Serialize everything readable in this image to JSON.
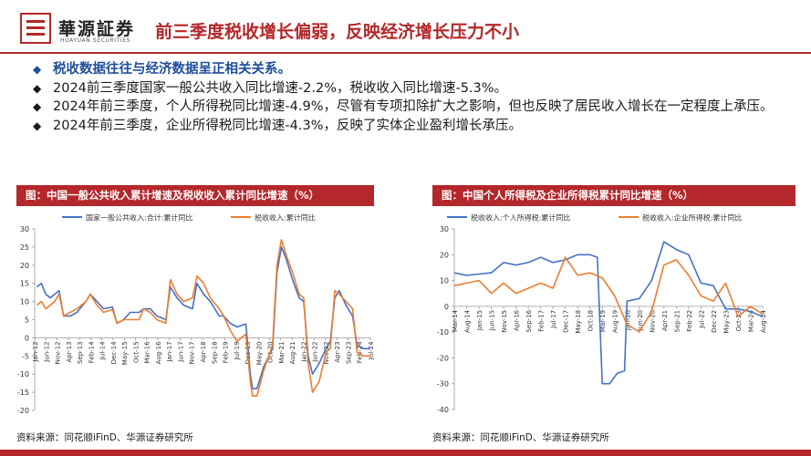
{
  "header": {
    "brand_name": "華源証券",
    "brand_sub": "HUAYUAN SECURITIES",
    "title": "前三季度税收增长偏弱，反映经济增长压力不小"
  },
  "bullets": [
    "税收数据往往与经济数据呈正相关关系。",
    "2024前三季度国家一般公共收入同比增速-2.2%，税收收入同比增速-5.3%。",
    "2024年前三季度，个人所得税同比增速-4.9%，尽管有专项扣除扩大之影响，但也反映了居民收入增长在一定程度上承压。",
    "2024年前三季度，企业所得税同比增速-4.3%，反映了实体企业盈利增长承压。"
  ],
  "bullet_marker": "◆",
  "colors": {
    "brand_red": "#b4272a",
    "series_blue": "#4472c4",
    "series_orange": "#ed7d31"
  },
  "source_left": "资料来源：同花顺iFinD、华源证券研究所",
  "source_right": "资料来源：同花顺iFinD、华源证券研究所",
  "chart_data": [
    {
      "type": "line",
      "title": "图：中国一般公共收入累计增速及税收收入累计同比增速（%）",
      "ylim": [
        -20,
        30
      ],
      "yticks": [
        -20,
        -15,
        -10,
        -5,
        0,
        5,
        10,
        15,
        20,
        25,
        30
      ],
      "x_start": "2012-01",
      "x_end": "2024-08",
      "xtick_labels": [
        "Jan-12",
        "Jun-12",
        "Nov-12",
        "Apr-13",
        "Sep-13",
        "Feb-14",
        "Jul-14",
        "Dec-14",
        "May-15",
        "Oct-15",
        "Mar-16",
        "Aug-16",
        "Jan-17",
        "Jun-17",
        "Nov-17",
        "Apr-18",
        "Sep-18",
        "Feb-19",
        "Jul-19",
        "Dec-19",
        "May-20",
        "Oct-20",
        "Mar-21",
        "Aug-21",
        "Jan-22",
        "Jun-22",
        "Nov-22",
        "Apr-23",
        "Sep-23",
        "Feb-24",
        "Jul-24"
      ],
      "grid": false,
      "legend_position": "top",
      "series": [
        {
          "name": "国家一般公共收入:合计:累计同比",
          "color": "#4472c4",
          "points": [
            [
              "2012-02",
              14
            ],
            [
              "2012-04",
              15
            ],
            [
              "2012-06",
              12
            ],
            [
              "2012-08",
              11
            ],
            [
              "2012-10",
              12
            ],
            [
              "2012-12",
              13
            ],
            [
              "2013-02",
              6
            ],
            [
              "2013-05",
              6
            ],
            [
              "2013-08",
              7
            ],
            [
              "2013-12",
              10
            ],
            [
              "2014-02",
              12
            ],
            [
              "2014-05",
              10
            ],
            [
              "2014-08",
              8
            ],
            [
              "2014-12",
              8.5
            ],
            [
              "2015-02",
              4
            ],
            [
              "2015-05",
              5
            ],
            [
              "2015-08",
              7
            ],
            [
              "2015-12",
              7
            ],
            [
              "2016-02",
              8
            ],
            [
              "2016-05",
              8
            ],
            [
              "2016-08",
              6
            ],
            [
              "2016-12",
              5
            ],
            [
              "2017-02",
              14
            ],
            [
              "2017-05",
              11
            ],
            [
              "2017-08",
              9
            ],
            [
              "2017-12",
              8
            ],
            [
              "2018-02",
              15
            ],
            [
              "2018-05",
              12
            ],
            [
              "2018-08",
              10
            ],
            [
              "2018-12",
              6
            ],
            [
              "2019-02",
              6
            ],
            [
              "2019-05",
              4
            ],
            [
              "2019-08",
              3
            ],
            [
              "2019-12",
              3.8
            ],
            [
              "2020-02",
              -10
            ],
            [
              "2020-03",
              -14
            ],
            [
              "2020-05",
              -14
            ],
            [
              "2020-08",
              -8
            ],
            [
              "2020-12",
              -3
            ],
            [
              "2021-02",
              18
            ],
            [
              "2021-04",
              25
            ],
            [
              "2021-06",
              22
            ],
            [
              "2021-09",
              16
            ],
            [
              "2021-12",
              11
            ],
            [
              "2022-02",
              10
            ],
            [
              "2022-04",
              -5
            ],
            [
              "2022-06",
              -10
            ],
            [
              "2022-09",
              -7
            ],
            [
              "2022-12",
              -3
            ],
            [
              "2023-02",
              -1
            ],
            [
              "2023-04",
              11
            ],
            [
              "2023-06",
              13
            ],
            [
              "2023-09",
              9
            ],
            [
              "2023-12",
              6
            ],
            [
              "2024-02",
              -2
            ],
            [
              "2024-05",
              -3
            ],
            [
              "2024-08",
              -3
            ]
          ]
        },
        {
          "name": "税收收入:累计同比",
          "color": "#ed7d31",
          "points": [
            [
              "2012-02",
              9
            ],
            [
              "2012-04",
              10
            ],
            [
              "2012-06",
              8
            ],
            [
              "2012-08",
              9
            ],
            [
              "2012-10",
              10
            ],
            [
              "2012-12",
              12
            ],
            [
              "2013-02",
              6
            ],
            [
              "2013-05",
              7
            ],
            [
              "2013-08",
              8
            ],
            [
              "2013-12",
              10
            ],
            [
              "2014-02",
              12
            ],
            [
              "2014-05",
              9
            ],
            [
              "2014-08",
              7
            ],
            [
              "2014-12",
              7.8
            ],
            [
              "2015-02",
              4
            ],
            [
              "2015-05",
              5
            ],
            [
              "2015-08",
              5
            ],
            [
              "2015-12",
              5
            ],
            [
              "2016-02",
              8
            ],
            [
              "2016-05",
              7
            ],
            [
              "2016-08",
              5
            ],
            [
              "2016-12",
              4
            ],
            [
              "2017-02",
              16
            ],
            [
              "2017-05",
              12
            ],
            [
              "2017-08",
              10
            ],
            [
              "2017-12",
              11
            ],
            [
              "2018-02",
              17
            ],
            [
              "2018-05",
              15
            ],
            [
              "2018-08",
              11
            ],
            [
              "2018-12",
              8
            ],
            [
              "2019-02",
              6
            ],
            [
              "2019-05",
              2
            ],
            [
              "2019-08",
              -1
            ],
            [
              "2019-12",
              1
            ],
            [
              "2020-02",
              -12
            ],
            [
              "2020-03",
              -16
            ],
            [
              "2020-05",
              -16
            ],
            [
              "2020-08",
              -9
            ],
            [
              "2020-12",
              -2
            ],
            [
              "2021-02",
              20
            ],
            [
              "2021-04",
              27
            ],
            [
              "2021-06",
              23
            ],
            [
              "2021-09",
              18
            ],
            [
              "2021-12",
              12
            ],
            [
              "2022-02",
              11
            ],
            [
              "2022-04",
              -7
            ],
            [
              "2022-06",
              -15
            ],
            [
              "2022-09",
              -12
            ],
            [
              "2022-12",
              -4
            ],
            [
              "2023-02",
              -3
            ],
            [
              "2023-04",
              13
            ],
            [
              "2023-06",
              12
            ],
            [
              "2023-09",
              10
            ],
            [
              "2023-12",
              8
            ],
            [
              "2024-02",
              -4
            ],
            [
              "2024-05",
              -5
            ],
            [
              "2024-08",
              -5
            ]
          ]
        }
      ]
    },
    {
      "type": "line",
      "title": "图：中国个人所得税及企业所得税累计同比增速（%）",
      "ylim": [
        -40,
        30
      ],
      "yticks": [
        -40,
        -30,
        -20,
        -10,
        0,
        10,
        20,
        30
      ],
      "x_start": "2014-03",
      "x_end": "2024-08",
      "xtick_labels": [
        "Mar-14",
        "Aug-14",
        "Jan-15",
        "Jun-15",
        "Nov-15",
        "Apr-16",
        "Sep-16",
        "Feb-17",
        "Jul-17",
        "Dec-17",
        "May-18",
        "Oct-18",
        "Mar-19",
        "Aug-19",
        "Jan-20",
        "Jun-20",
        "Nov-20",
        "Apr-21",
        "Sep-21",
        "Feb-22",
        "Jul-22",
        "Dec-22",
        "May-23",
        "Oct-23",
        "Mar-24",
        "Aug-24"
      ],
      "grid": false,
      "legend_position": "top",
      "series": [
        {
          "name": "税收收入:个人所得税:累计同比",
          "color": "#4472c4",
          "points": [
            [
              "2014-03",
              13
            ],
            [
              "2014-08",
              12
            ],
            [
              "2015-01",
              12.5
            ],
            [
              "2015-06",
              13
            ],
            [
              "2015-11",
              17
            ],
            [
              "2016-04",
              16
            ],
            [
              "2016-09",
              17
            ],
            [
              "2017-02",
              19
            ],
            [
              "2017-07",
              17
            ],
            [
              "2017-12",
              18
            ],
            [
              "2018-05",
              20
            ],
            [
              "2018-10",
              20
            ],
            [
              "2019-01",
              19
            ],
            [
              "2019-03",
              -30
            ],
            [
              "2019-06",
              -30
            ],
            [
              "2019-09",
              -26
            ],
            [
              "2019-12",
              -25
            ],
            [
              "2020-01",
              2
            ],
            [
              "2020-06",
              3
            ],
            [
              "2020-11",
              10
            ],
            [
              "2021-04",
              25
            ],
            [
              "2021-09",
              22
            ],
            [
              "2022-02",
              20
            ],
            [
              "2022-07",
              9
            ],
            [
              "2022-12",
              8
            ],
            [
              "2023-05",
              -1
            ],
            [
              "2023-10",
              -1
            ],
            [
              "2024-03",
              -2
            ],
            [
              "2024-08",
              -4
            ]
          ]
        },
        {
          "name": "税收收入:企业所得税:累计同比",
          "color": "#ed7d31",
          "points": [
            [
              "2014-03",
              8
            ],
            [
              "2014-08",
              9
            ],
            [
              "2015-01",
              10
            ],
            [
              "2015-06",
              5
            ],
            [
              "2015-11",
              9
            ],
            [
              "2016-04",
              5
            ],
            [
              "2016-09",
              7
            ],
            [
              "2017-02",
              9
            ],
            [
              "2017-07",
              7
            ],
            [
              "2017-12",
              19
            ],
            [
              "2018-05",
              12
            ],
            [
              "2018-10",
              13
            ],
            [
              "2019-03",
              11
            ],
            [
              "2019-08",
              4
            ],
            [
              "2020-01",
              -7
            ],
            [
              "2020-06",
              -10
            ],
            [
              "2020-11",
              -2
            ],
            [
              "2021-04",
              16
            ],
            [
              "2021-09",
              18
            ],
            [
              "2022-02",
              12
            ],
            [
              "2022-07",
              4
            ],
            [
              "2022-12",
              2
            ],
            [
              "2023-05",
              9
            ],
            [
              "2023-10",
              -4
            ],
            [
              "2024-03",
              0
            ],
            [
              "2024-08",
              -3
            ]
          ]
        }
      ]
    }
  ]
}
